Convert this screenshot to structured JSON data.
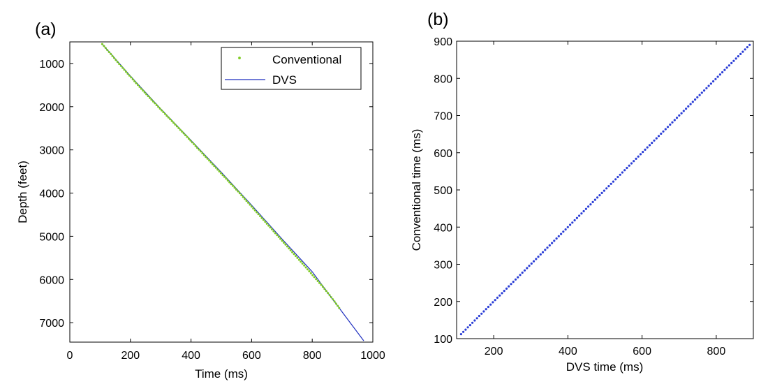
{
  "chart_data": [
    {
      "panel_label": "(a)",
      "type": "line",
      "xlabel": "Time (ms)",
      "ylabel": "Depth (feet)",
      "xlim": [
        0,
        1000
      ],
      "ylim": [
        500,
        7450
      ],
      "y_reversed": true,
      "x_ticks": [
        0,
        200,
        400,
        600,
        800,
        1000
      ],
      "y_ticks": [
        1000,
        2000,
        3000,
        4000,
        5000,
        6000,
        7000
      ],
      "grid": false,
      "legend": {
        "position": "top-right",
        "entries": [
          "Conventional",
          "DVS"
        ]
      },
      "series": [
        {
          "name": "Conventional",
          "style": "dots",
          "color": "#7ecb20",
          "x": [
            107,
            135,
            163,
            191,
            219,
            247,
            275,
            303,
            331,
            359,
            387,
            415,
            443,
            471,
            499,
            527,
            555,
            583,
            611,
            639,
            667,
            695,
            723,
            751,
            779,
            807,
            835,
            863,
            889
          ],
          "y": [
            550,
            780,
            1010,
            1235,
            1455,
            1670,
            1880,
            2085,
            2290,
            2495,
            2700,
            2910,
            3120,
            3330,
            3540,
            3750,
            3960,
            4180,
            4400,
            4620,
            4840,
            5060,
            5280,
            5500,
            5720,
            5945,
            6170,
            6410,
            6660
          ]
        },
        {
          "name": "DVS",
          "style": "line",
          "color": "#1f2fbf",
          "x": [
            108,
            200,
            300,
            400,
            500,
            600,
            700,
            800,
            889,
            970
          ],
          "y": [
            560,
            1290,
            2050,
            2780,
            3520,
            4280,
            5060,
            5820,
            6660,
            7420
          ]
        }
      ]
    },
    {
      "panel_label": "(b)",
      "type": "scatter",
      "xlabel": "DVS time (ms)",
      "ylabel": "Conventional time (ms)",
      "xlim": [
        100,
        900
      ],
      "ylim": [
        100,
        900
      ],
      "x_ticks": [
        200,
        400,
        600,
        800
      ],
      "y_ticks": [
        100,
        200,
        300,
        400,
        500,
        600,
        700,
        800,
        900
      ],
      "grid": false,
      "series": [
        {
          "style": "dots",
          "color": "#2b3ed6",
          "x_start": 112,
          "x_end": 890,
          "count": 128,
          "slope": 1.0,
          "intercept": 0
        }
      ]
    }
  ]
}
